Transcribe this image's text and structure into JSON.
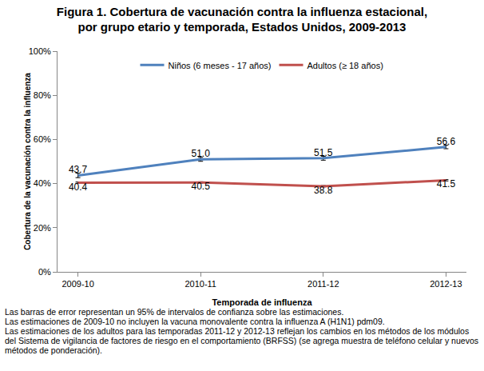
{
  "chart_data": {
    "type": "line",
    "title": [
      "Figura 1. Cobertura de vacunación contra la influenza estacional,",
      "por grupo etario y temporada, Estados Unidos, 2009-2013"
    ],
    "x_label": "Temporada de influenza",
    "y_label": "Cobertura de la vacunación contra la influenza",
    "categories": [
      "2009-10",
      "2010-11",
      "2011-12",
      "2012-13"
    ],
    "series": [
      {
        "name": "Niños (6 meses - 17 años)",
        "color": "#4f81bd",
        "values": [
          43.7,
          51.0,
          51.5,
          56.6
        ],
        "value_labels": [
          "43.7",
          "51.0",
          "51.5",
          "56.6"
        ],
        "errors": [
          1.0,
          0.9,
          0.9,
          0.8
        ]
      },
      {
        "name": "Adultos (≥ 18 años)",
        "color": "#c0504d",
        "values": [
          40.4,
          40.5,
          38.8,
          41.5
        ],
        "value_labels": [
          "40.4",
          "40.5",
          "38.8",
          "41.5"
        ],
        "errors": [
          0.3,
          0.3,
          0.3,
          0.3
        ]
      }
    ],
    "ylim": [
      0,
      100
    ],
    "yticks": [
      {
        "value": 0,
        "label": "0%"
      },
      {
        "value": 20,
        "label": "20%"
      },
      {
        "value": 40,
        "label": "40%"
      },
      {
        "value": 60,
        "label": "60%"
      },
      {
        "value": 80,
        "label": "80%"
      },
      {
        "value": 100,
        "label": "100%"
      }
    ],
    "grid": false,
    "legend": "top",
    "data_labels": true,
    "notes": [
      "Las barras de error representan un 95% de intervalos de confianza sobre las estimaciones.",
      "Las estimaciones de 2009-10 no incluyen la vacuna monovalente contra la influenza A (H1N1) pdm09.",
      "Las estimaciones de los adultos para las temporadas 2011-12 y 2012-13 reflejan los cambios en los métodos de los módulos del Sistema de vigilancia de factores de riesgo en el comportamiento (BRFSS) (se agrega muestra de teléfono celular y nuevos métodos de ponderación)."
    ]
  }
}
